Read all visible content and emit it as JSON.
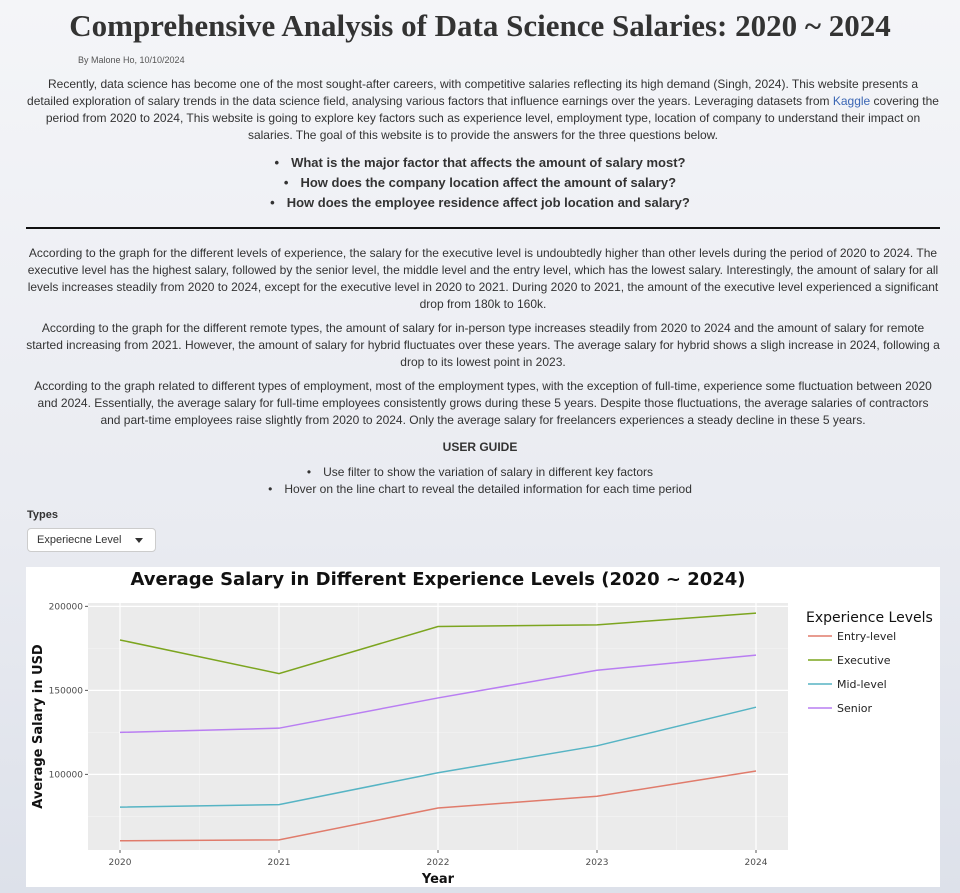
{
  "page": {
    "title": "Comprehensive Analysis of Data Science Salaries: 2020 ~ 2024",
    "byline": "By Malone Ho, 10/10/2024",
    "intro_before_link": "Recently, data science has become one of the most sought-after careers, with competitive salaries reflecting its high demand (Singh, 2024). This website presents a detailed exploration of salary trends in the data science field, analysing various factors that influence earnings over the years. Leveraging datasets from ",
    "intro_link": "Kaggle",
    "intro_after_link": " covering the period from 2020 to 2024, This website is going to explore key factors such as experience level, employment type, location of company to understand their impact on salaries. The goal of this website is to provide the answers for the three questions below.",
    "questions": [
      "What is the major factor that affects the amount of salary most?",
      "How does the company location affect the amount of salary?",
      "How does the employee residence affect job location and salary?"
    ],
    "analysis": [
      "According to the graph for the different levels of experience, the salary for the executive level is undoubtedly higher than other levels during the period of 2020 to 2024. The executive level has the highest salary, followed by the senior level, the middle level and the entry level, which has the lowest salary. Interestingly, the amount of salary for all levels increases steadily from 2020 to 2024, except for the executive level in 2020 to 2021. During 2020 to 2021, the amount of the executive level experienced a significant drop from 180k to 160k.",
      "According to the graph for the different remote types, the amount of salary for in-person type increases steadily from 2020 to 2024 and the amount of salary for remote started increasing from 2021. However, the amount of salary for hybrid fluctuates over these years. The average salary for hybrid shows a sligh increase in 2024, following a drop to its lowest point in 2023.",
      "According to the graph related to different types of employment, most of the employment types, with the exception of full-time, experience some fluctuation between 2020 and 2024. Essentially, the average salary for full-time employees consistently grows during these 5 years. Despite those fluctuations, the average salaries of contractors and part-time employees raise slightly from 2020 to 2024. Only the average salary for freelancers experiences a steady decline in these 5 years."
    ],
    "guide_title": "USER GUIDE",
    "guide": [
      "Use filter to show the variation of salary in different key factors",
      "Hover on the line chart to reveal the detailed information for each time period"
    ],
    "filter": {
      "label": "Types",
      "selected": "Experiecne Level"
    }
  },
  "chart_data": {
    "type": "line",
    "title": "Average Salary in Different Experience Levels (2020 ~ 2024)",
    "xlabel": "Year",
    "ylabel": "Average Salary in USD",
    "x": [
      2020,
      2021,
      2022,
      2023,
      2024
    ],
    "x_tick_labels": [
      "2020",
      "2021",
      "2022",
      "2023",
      "2024"
    ],
    "y_ticks": [
      100000,
      150000,
      200000
    ],
    "y_tick_labels": [
      "100000",
      "150000",
      "200000"
    ],
    "ylim": [
      55000,
      202000
    ],
    "grid": true,
    "legend_title": "Experience Levels",
    "legend_position": "right",
    "plot_background": "#ebebeb",
    "series": [
      {
        "name": "Entry-level",
        "color": "#e07b6b",
        "values": [
          60500,
          61000,
          80000,
          87000,
          102000
        ]
      },
      {
        "name": "Executive",
        "color": "#7ca51f",
        "values": [
          180000,
          160000,
          188000,
          189000,
          196000
        ]
      },
      {
        "name": "Mid-level",
        "color": "#56b4c4",
        "values": [
          80500,
          82000,
          101000,
          117000,
          140000
        ]
      },
      {
        "name": "Senior",
        "color": "#b97ef2",
        "values": [
          125000,
          127500,
          145500,
          162000,
          171000
        ]
      }
    ]
  }
}
